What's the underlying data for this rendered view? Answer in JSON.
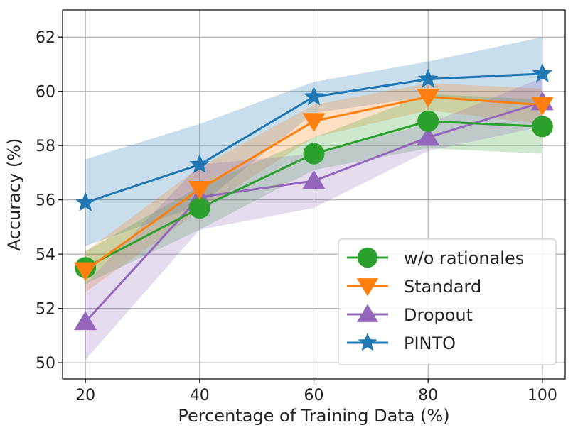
{
  "chart_data": {
    "type": "line",
    "title": "",
    "xlabel": "Percentage of Training Data (%)",
    "ylabel": "Accuracy (%)",
    "x": [
      20,
      40,
      60,
      80,
      100
    ],
    "xticks": [
      "20",
      "40",
      "60",
      "80",
      "100"
    ],
    "yticks": [
      "50",
      "52",
      "54",
      "56",
      "58",
      "60",
      "62"
    ],
    "xlim": [
      16,
      104
    ],
    "ylim": [
      49.4,
      63.0
    ],
    "grid": true,
    "legend_position": "bottom-right",
    "series": [
      {
        "name": "PINTO",
        "color": "#1f77b4",
        "marker": "star",
        "values": [
          55.9,
          57.3,
          59.8,
          60.45,
          60.65
        ],
        "band_low": [
          54.3,
          55.8,
          59.2,
          59.8,
          59.5
        ],
        "band_high": [
          57.5,
          58.8,
          60.35,
          61.1,
          62.0
        ]
      },
      {
        "name": "Standard",
        "color": "#ff7f0e",
        "marker": "triangle-down",
        "values": [
          53.4,
          56.4,
          58.9,
          59.8,
          59.5
        ],
        "band_low": [
          52.6,
          55.6,
          58.3,
          59.3,
          58.8
        ],
        "band_high": [
          54.1,
          57.2,
          59.5,
          60.3,
          60.1
        ]
      },
      {
        "name": "w/o rationales",
        "color": "#2ca02c",
        "marker": "circle",
        "values": [
          53.5,
          55.7,
          57.7,
          58.9,
          58.7
        ],
        "band_low": [
          52.9,
          54.9,
          57.1,
          57.9,
          57.7
        ],
        "band_high": [
          54.1,
          56.5,
          58.3,
          59.9,
          59.7
        ]
      },
      {
        "name": "Dropout",
        "color": "#9467bd",
        "marker": "triangle-up",
        "values": [
          51.5,
          56.1,
          56.7,
          58.3,
          59.6
        ],
        "band_low": [
          50.1,
          54.9,
          55.7,
          57.8,
          58.7
        ],
        "band_high": [
          52.9,
          57.3,
          57.7,
          58.8,
          60.5
        ]
      }
    ],
    "legend_order": [
      "w/o rationales",
      "Standard",
      "Dropout",
      "PINTO"
    ]
  }
}
